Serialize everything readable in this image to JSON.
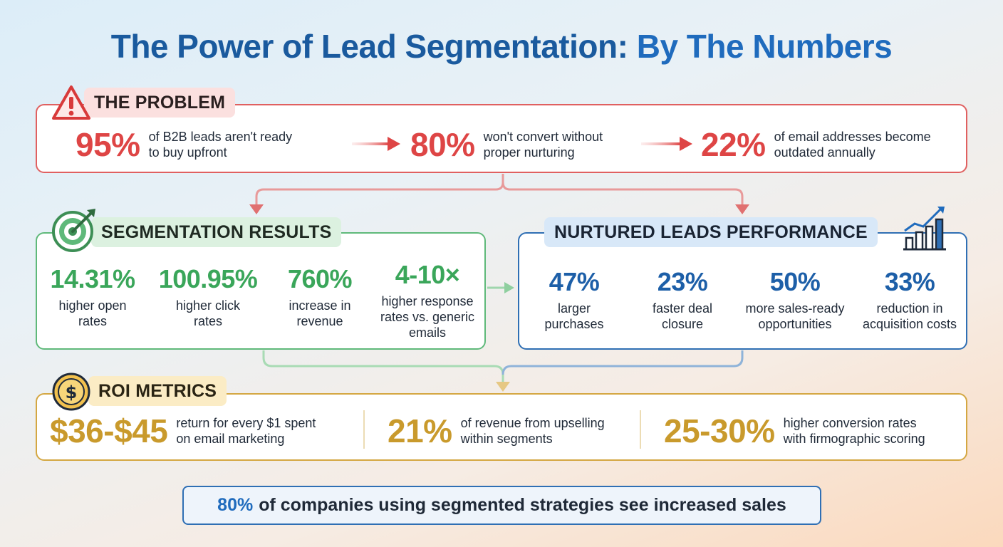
{
  "title": {
    "part1": "The Power of Lead Segmentation:",
    "part2": "By The Numbers"
  },
  "problem": {
    "heading": "THE PROBLEM",
    "icon": "warning-triangle-icon",
    "stats": [
      {
        "value": "95%",
        "line1": "of B2B leads aren't ready",
        "line2": "to buy upfront"
      },
      {
        "value": "80%",
        "line1": "won't convert without",
        "line2": "proper nurturing"
      },
      {
        "value": "22%",
        "line1": "of email addresses become",
        "line2": "outdated annually"
      }
    ]
  },
  "segmentation": {
    "heading": "SEGMENTATION RESULTS",
    "icon": "target-icon",
    "stats": [
      {
        "value": "14.31%",
        "line1": "higher open",
        "line2": "rates",
        "line3": ""
      },
      {
        "value": "100.95%",
        "line1": "higher click",
        "line2": "rates",
        "line3": ""
      },
      {
        "value": "760%",
        "line1": "increase in",
        "line2": "revenue",
        "line3": ""
      },
      {
        "value": "4-10×",
        "line1": "higher response",
        "line2": "rates vs. generic",
        "line3": "emails"
      }
    ]
  },
  "nurtured": {
    "heading": "NURTURED LEADS PERFORMANCE",
    "icon": "growth-chart-icon",
    "stats": [
      {
        "value": "47%",
        "line1": "larger",
        "line2": "purchases"
      },
      {
        "value": "23%",
        "line1": "faster deal",
        "line2": "closure"
      },
      {
        "value": "50%",
        "line1": "more sales-ready",
        "line2": "opportunities"
      },
      {
        "value": "33%",
        "line1": "reduction in",
        "line2": "acquisition costs"
      }
    ]
  },
  "roi": {
    "heading": "ROI METRICS",
    "icon": "dollar-coin-icon",
    "stats": [
      {
        "value": "$36-$45",
        "line1": "return for every $1 spent",
        "line2": "on email marketing"
      },
      {
        "value": "21%",
        "line1": "of revenue from upselling",
        "line2": "within segments"
      },
      {
        "value": "25-30%",
        "line1": "higher conversion rates",
        "line2": "with firmographic scoring"
      }
    ]
  },
  "footer": {
    "highlight": "80%",
    "text": "of companies using segmented strategies see increased sales"
  },
  "colors": {
    "red": "#de4545",
    "green": "#3aa65a",
    "blue": "#1d5fa8",
    "gold": "#c99a2c"
  }
}
